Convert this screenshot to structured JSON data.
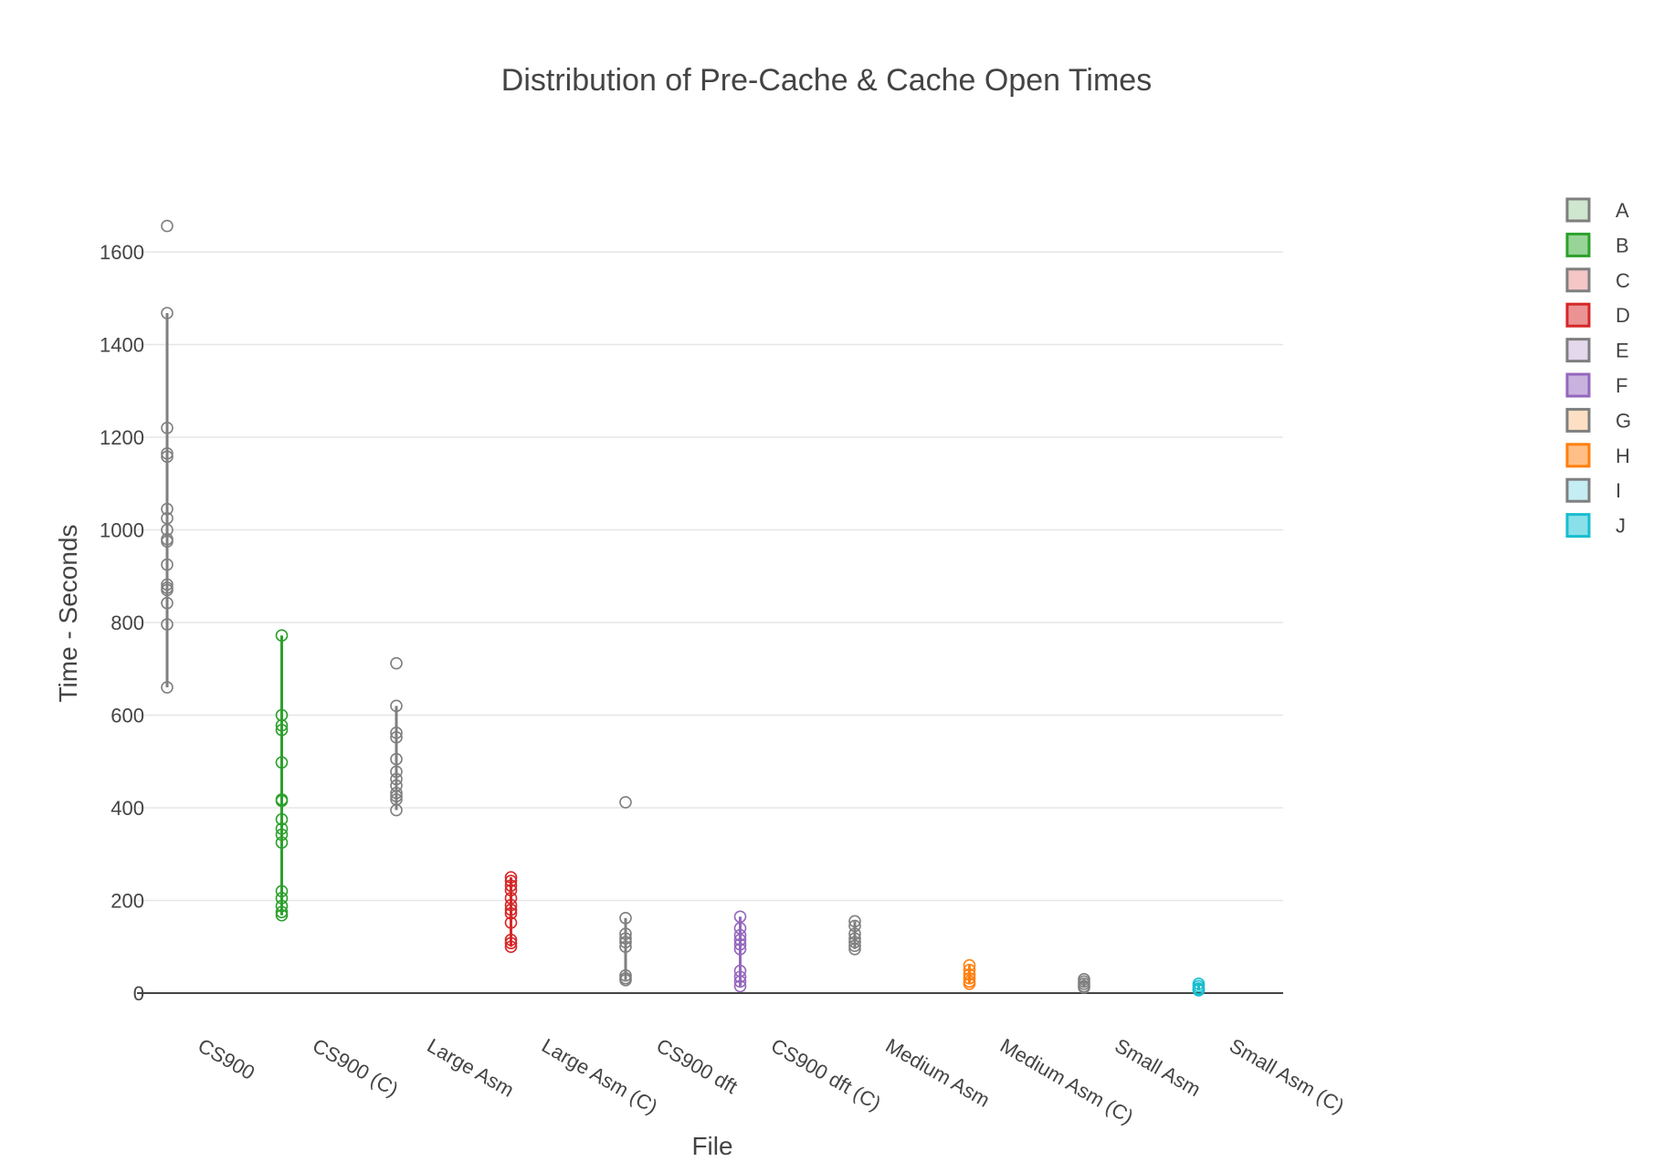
{
  "chart_data": {
    "type": "box",
    "title": "Distribution of Pre-Cache & Cache Open Times",
    "xlabel": "File",
    "ylabel": "Time - Seconds",
    "ylim": [
      -30,
      1720
    ],
    "yticks": [
      0,
      200,
      400,
      600,
      800,
      1000,
      1200,
      1400,
      1600
    ],
    "grid": true,
    "legend_position": "right",
    "categories": [
      "CS900",
      "CS900 (C)",
      "Large Asm",
      "Large Asm (C)",
      "CS900 dft",
      "CS900 dft (C)",
      "Medium Asm",
      "Medium Asm (C)",
      "Small Asm",
      "Small Asm (C)"
    ],
    "series": [
      {
        "name": "A",
        "category": "CS900",
        "color": "#7f7f7f",
        "fill": "#cfe6cf",
        "whisker": [
          660,
          1468
        ],
        "points": [
          1656,
          1468,
          1220,
          1165,
          1158,
          1045,
          1025,
          1000,
          980,
          975,
          925,
          882,
          875,
          870,
          842,
          796,
          660
        ]
      },
      {
        "name": "B",
        "category": "CS900 (C)",
        "color": "#2ca02c",
        "fill": "#98d498",
        "whisker": [
          168,
          772
        ],
        "points": [
          772,
          600,
          578,
          568,
          498,
          418,
          415,
          375,
          355,
          342,
          325,
          220,
          205,
          188,
          175,
          168
        ]
      },
      {
        "name": "C",
        "category": "Large Asm",
        "color": "#7f7f7f",
        "fill": "#f4c6c6",
        "whisker": [
          395,
          620
        ],
        "points": [
          712,
          620,
          562,
          552,
          505,
          478,
          462,
          448,
          432,
          425,
          418,
          395
        ]
      },
      {
        "name": "D",
        "category": "Large Asm (C)",
        "color": "#d62728",
        "fill": "#eb9394",
        "whisker": [
          100,
          250
        ],
        "points": [
          250,
          242,
          232,
          222,
          205,
          190,
          180,
          172,
          152,
          115,
          108,
          100
        ]
      },
      {
        "name": "E",
        "category": "CS900 dft",
        "color": "#7f7f7f",
        "fill": "#e4d8ec",
        "whisker": [
          28,
          162
        ],
        "points": [
          412,
          162,
          128,
          118,
          110,
          100,
          38,
          32,
          28
        ]
      },
      {
        "name": "F",
        "category": "CS900 dft (C)",
        "color": "#9467bd",
        "fill": "#c9b3de",
        "whisker": [
          15,
          165
        ],
        "points": [
          165,
          140,
          125,
          115,
          105,
          95,
          48,
          35,
          25,
          15
        ]
      },
      {
        "name": "G",
        "category": "Medium Asm",
        "color": "#7f7f7f",
        "fill": "#fde0c4",
        "whisker": [
          95,
          155
        ],
        "points": [
          155,
          145,
          128,
          118,
          110,
          102,
          95
        ]
      },
      {
        "name": "H",
        "category": "Medium Asm (C)",
        "color": "#ff7f0e",
        "fill": "#ffbf86",
        "whisker": [
          20,
          60
        ],
        "points": [
          60,
          50,
          40,
          32,
          25,
          20
        ]
      },
      {
        "name": "I",
        "category": "Small Asm",
        "color": "#7f7f7f",
        "fill": "#c4eef3",
        "whisker": [
          12,
          30
        ],
        "points": [
          30,
          25,
          20,
          15,
          12
        ]
      },
      {
        "name": "J",
        "category": "Small Asm (C)",
        "color": "#17becf",
        "fill": "#8ae0e9",
        "whisker": [
          6,
          20
        ],
        "points": [
          20,
          15,
          10,
          8,
          6
        ]
      }
    ]
  }
}
